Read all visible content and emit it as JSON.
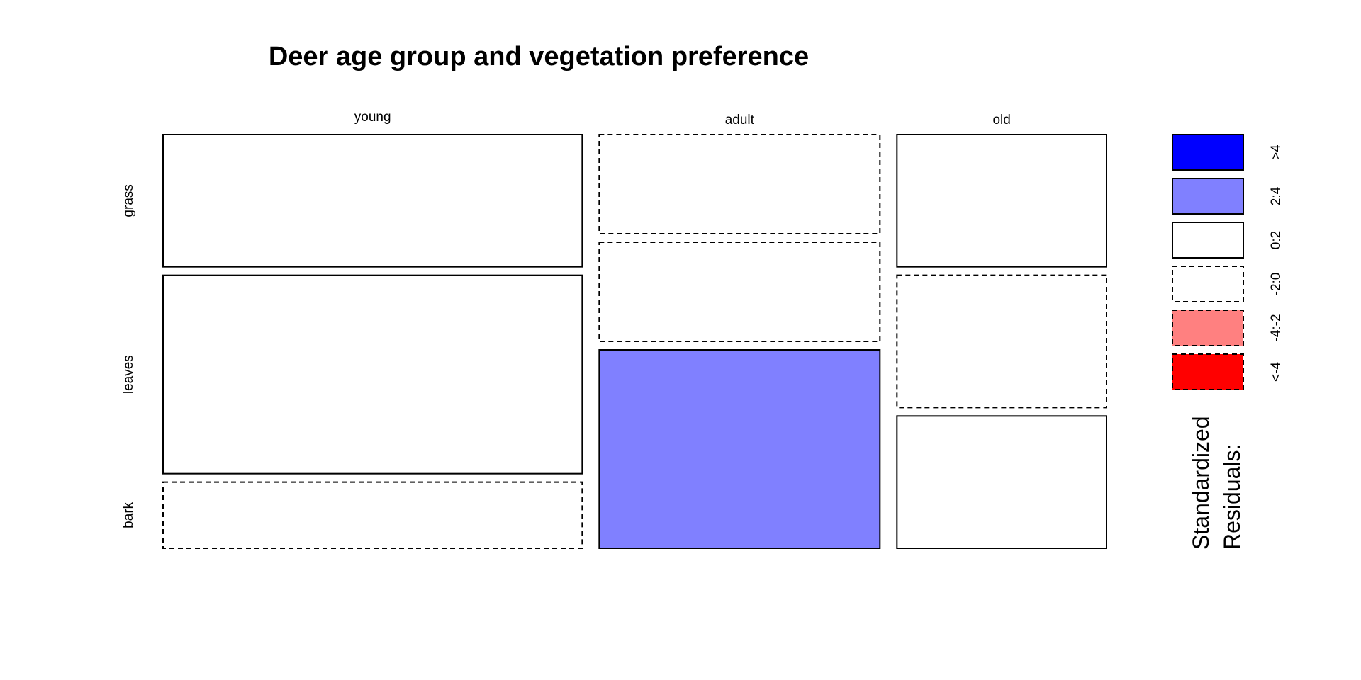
{
  "chart_data": {
    "type": "mosaic",
    "title": "Deer age group and vegetation preference",
    "columns": [
      "young",
      "adult",
      "old"
    ],
    "rows": [
      "grass",
      "leaves",
      "bark"
    ],
    "column_proportions": [
      0.56,
      0.375,
      0.28
    ],
    "cells": [
      {
        "column": "young",
        "row": "grass",
        "proportion": 0.32,
        "residual_class": "0:2"
      },
      {
        "column": "young",
        "row": "leaves",
        "proportion": 0.48,
        "residual_class": "0:2"
      },
      {
        "column": "young",
        "row": "bark",
        "proportion": 0.16,
        "residual_class": "-2:0"
      },
      {
        "column": "adult",
        "row": "grass",
        "proportion": 0.24,
        "residual_class": "-2:0"
      },
      {
        "column": "adult",
        "row": "leaves",
        "proportion": 0.24,
        "residual_class": "-2:0"
      },
      {
        "column": "adult",
        "row": "bark",
        "proportion": 0.48,
        "residual_class": "2:4"
      },
      {
        "column": "old",
        "row": "grass",
        "proportion": 0.32,
        "residual_class": "0:2"
      },
      {
        "column": "old",
        "row": "leaves",
        "proportion": 0.32,
        "residual_class": "-2:0"
      },
      {
        "column": "old",
        "row": "bark",
        "proportion": 0.32,
        "residual_class": "0:2"
      }
    ],
    "legend": {
      "title_lines": [
        "Standardized",
        "Residuals:"
      ],
      "entries": [
        {
          "label": ">4",
          "fill": "#0000ff",
          "dashed": false
        },
        {
          "label": "2:4",
          "fill": "#8080ff",
          "dashed": false
        },
        {
          "label": "0:2",
          "fill": "#ffffff",
          "dashed": false
        },
        {
          "label": "-2:0",
          "fill": "#ffffff",
          "dashed": true
        },
        {
          "label": "-4:-2",
          "fill": "#ff8080",
          "dashed": true
        },
        {
          "label": "<-4",
          "fill": "#ff0000",
          "dashed": true
        }
      ]
    }
  }
}
